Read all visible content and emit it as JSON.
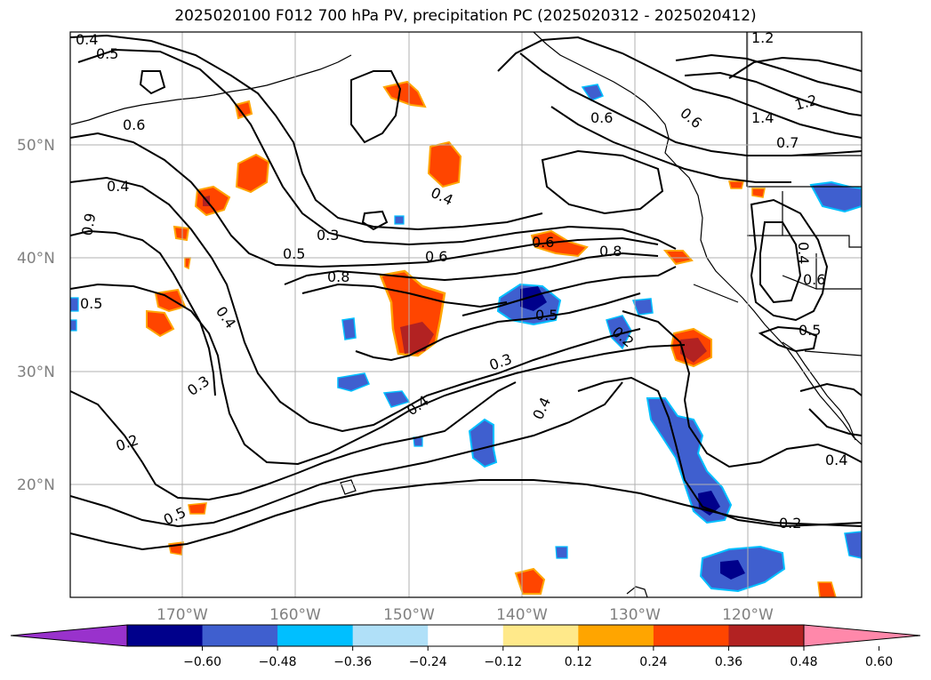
{
  "title": "2025020100 F012 700 hPa PV, precipitation PC (2025020312 - 2025020412)",
  "lat_labels": [
    "50°N",
    "40°N",
    "30°N",
    "20°N"
  ],
  "lon_labels": [
    "170°W",
    "160°W",
    "150°W",
    "140°W",
    "130°W",
    "120°W"
  ],
  "colorbar": {
    "ticks": [
      "−0.60",
      "−0.48",
      "−0.36",
      "−0.24",
      "−0.12",
      "0.12",
      "0.24",
      "0.36",
      "0.48",
      "0.60"
    ],
    "colors": [
      "#9932cc",
      "#00008b",
      "#3f5fcf",
      "#00bfff",
      "#b0e0f8",
      "#ffffff",
      "#ffe98a",
      "#ffa500",
      "#ff4500",
      "#b22222",
      "#ff88aa"
    ]
  },
  "contour_labels": [
    "0.4",
    "0.5",
    "0.6",
    "0.4",
    "0.9",
    "0.5",
    "0.4",
    "0.3",
    "0.2",
    "0.5",
    "0.3",
    "0.5",
    "0.8",
    "0.6",
    "0.8",
    "0.5",
    "0.4",
    "0.3",
    "0.4",
    "0.2",
    "0.4",
    "0.2",
    "0.6",
    "1.4",
    "1.2",
    "1.2",
    "0.4",
    "0.6",
    "0.5",
    "0.4",
    "0.6",
    "0.7",
    "0.6"
  ]
}
